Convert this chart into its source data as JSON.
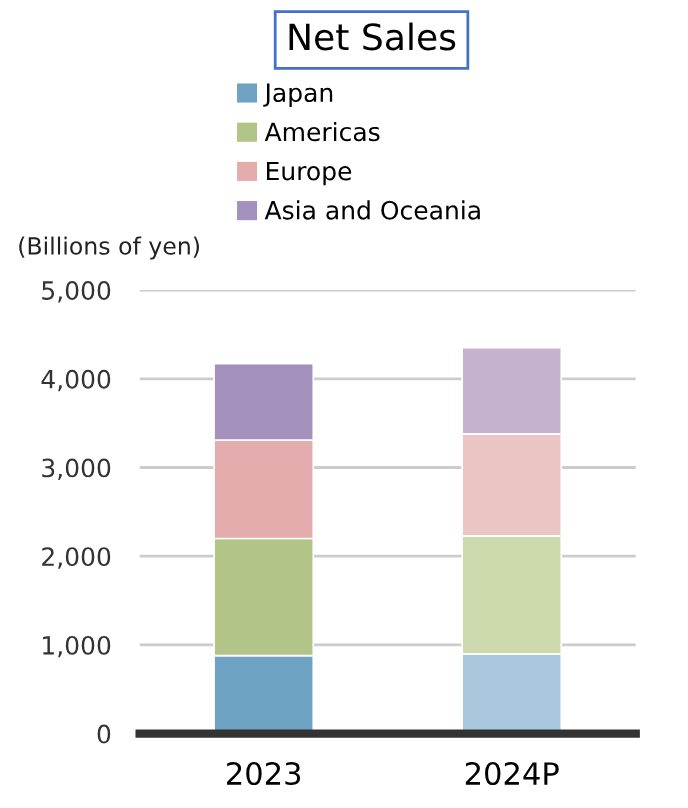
{
  "chart_data": {
    "type": "bar",
    "title": "Net Sales",
    "ylabel": "(Billions of yen)",
    "stacked": true,
    "categories": [
      "2023",
      "2024P"
    ],
    "series": [
      {
        "name": "Japan",
        "color": "#6fa3c4",
        "colors": [
          "#6fa3c4",
          "#a9c8dd"
        ],
        "values": [
          880,
          900
        ]
      },
      {
        "name": "Americas",
        "color": "#b2c487",
        "colors": [
          "#b2c487",
          "#ccdaae"
        ],
        "values": [
          1320,
          1330
        ]
      },
      {
        "name": "Europe",
        "color": "#e2adac",
        "colors": [
          "#e2adac",
          "#eac5c4"
        ],
        "values": [
          1110,
          1150
        ]
      },
      {
        "name": "Asia and Oceania",
        "color": "#a490bc",
        "colors": [
          "#a490bc",
          "#c5b2cf"
        ],
        "values": [
          860,
          970
        ]
      }
    ],
    "ylim": [
      0,
      5000
    ],
    "yticks": [
      {
        "value": 0,
        "label": "0"
      },
      {
        "value": 1000,
        "label": "1,000"
      },
      {
        "value": 2000,
        "label": "2,000"
      },
      {
        "value": 3000,
        "label": "3,000"
      },
      {
        "value": 4000,
        "label": "4,000"
      },
      {
        "value": 5000,
        "label": "5,000"
      }
    ],
    "grid": "y",
    "legend": "top"
  }
}
